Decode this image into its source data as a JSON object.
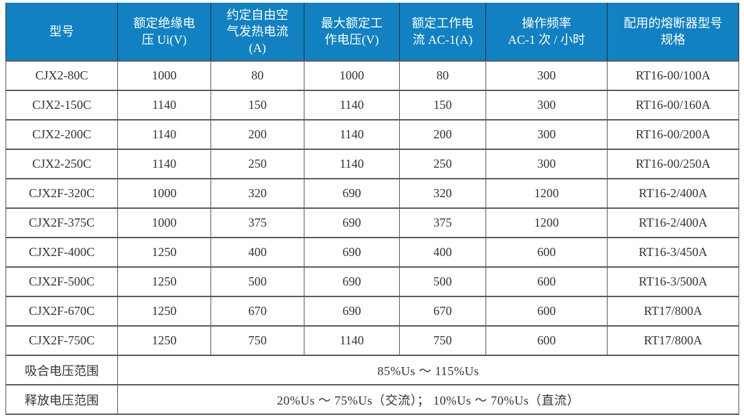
{
  "table": {
    "colors": {
      "header_bg": "#1181C2",
      "header_text": "#FFFFFF",
      "border": "#595959",
      "body_text": "#333333"
    },
    "columns": [
      "型号",
      "额定绝缘电\n压 Ui(V)",
      "约定自由空\n气发热电流\n(A)",
      "最大额定工\n作电压(V)",
      "额定工作电\n流 AC-1(A)",
      "操作频率\nAC-1 次 / 小时",
      "配用的熔断器型号\n规格"
    ],
    "rows": [
      [
        "CJX2-80C",
        "1000",
        "80",
        "1000",
        "80",
        "300",
        "RT16-00/100A"
      ],
      [
        "CJX2-150C",
        "1140",
        "150",
        "1140",
        "150",
        "300",
        "RT16-00/160A"
      ],
      [
        "CJX2-200C",
        "1140",
        "200",
        "1140",
        "200",
        "300",
        "RT16-00/200A"
      ],
      [
        "CJX2-250C",
        "1140",
        "250",
        "1140",
        "250",
        "300",
        "RT16-00/250A"
      ],
      [
        "CJX2F-320C",
        "1000",
        "320",
        "690",
        "320",
        "1200",
        "RT16-2/400A"
      ],
      [
        "CJX2F-375C",
        "1000",
        "375",
        "690",
        "375",
        "1200",
        "RT16-2/400A"
      ],
      [
        "CJX2F-400C",
        "1250",
        "400",
        "690",
        "400",
        "600",
        "RT16-3/450A"
      ],
      [
        "CJX2F-500C",
        "1250",
        "500",
        "690",
        "500",
        "600",
        "RT16-3/500A"
      ],
      [
        "CJX2F-670C",
        "1250",
        "670",
        "690",
        "670",
        "600",
        "RT17/800A"
      ],
      [
        "CJX2F-750C",
        "1250",
        "750",
        "1140",
        "750",
        "600",
        "RT17/800A"
      ]
    ],
    "footer_rows": [
      {
        "label": "吸合电压范围",
        "value": "85%Us ～ 115%Us"
      },
      {
        "label": "释放电压范围",
        "value": "20%Us ～ 75%Us（交流）； 10%Us ～ 70%Us（直流）"
      }
    ]
  }
}
